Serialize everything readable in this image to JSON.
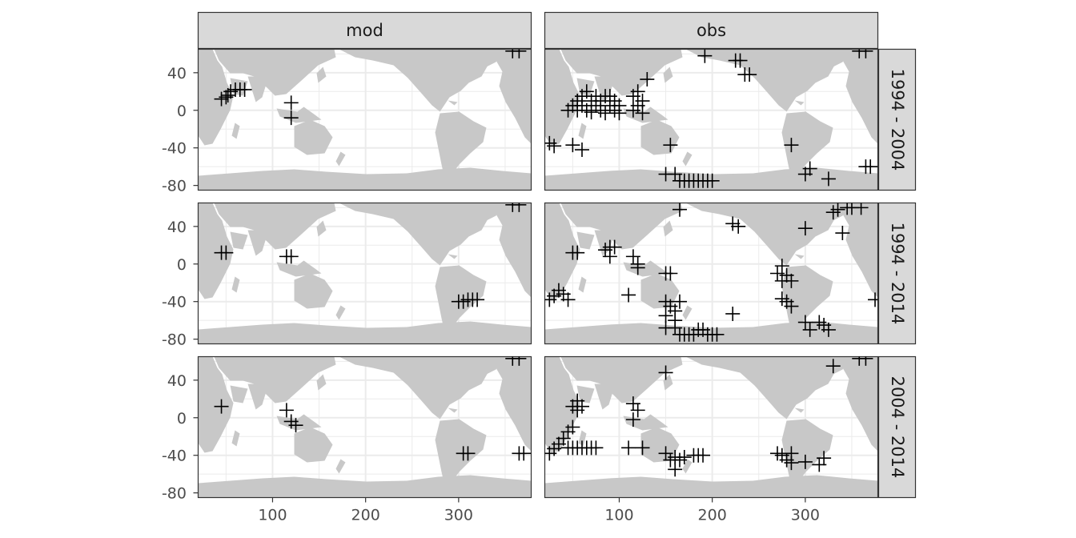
{
  "chart_data": {
    "type": "scatter",
    "facet_columns": [
      "mod",
      "obs"
    ],
    "facet_rows": [
      "1994 - 2004",
      "1994 - 2014",
      "2004 - 2014"
    ],
    "xlim": [
      20,
      378
    ],
    "ylim": [
      -85,
      65
    ],
    "x_ticks": [
      "100",
      "200",
      "300"
    ],
    "x_tick_values": [
      100,
      200,
      300
    ],
    "y_ticks": [
      "40",
      "0",
      "-40",
      "-80"
    ],
    "y_tick_values": [
      40,
      0,
      -40,
      -80
    ],
    "grid": true,
    "marker": "+",
    "colors": {
      "land": "#c8c8c8",
      "grid": "#ebebeb",
      "strip": "#d9d9d9",
      "border": "#333333",
      "marker": "#000000"
    },
    "panels": [
      {
        "col": "mod",
        "row": "1994 - 2004",
        "points": [
          [
            45,
            12
          ],
          [
            50,
            14
          ],
          [
            55,
            20
          ],
          [
            60,
            22
          ],
          [
            65,
            22
          ],
          [
            70,
            22
          ],
          [
            52,
            16
          ],
          [
            120,
            8
          ],
          [
            120,
            -8
          ],
          [
            358,
            63
          ],
          [
            365,
            63
          ]
        ]
      },
      {
        "col": "obs",
        "row": "1994 - 2004",
        "points": [
          [
            25,
            -35
          ],
          [
            30,
            -38
          ],
          [
            45,
            0
          ],
          [
            50,
            5
          ],
          [
            55,
            0
          ],
          [
            55,
            10
          ],
          [
            60,
            15
          ],
          [
            60,
            5
          ],
          [
            65,
            20
          ],
          [
            65,
            0
          ],
          [
            70,
            10
          ],
          [
            70,
            -2
          ],
          [
            75,
            15
          ],
          [
            75,
            5
          ],
          [
            80,
            0
          ],
          [
            80,
            10
          ],
          [
            85,
            15
          ],
          [
            85,
            -3
          ],
          [
            90,
            5
          ],
          [
            90,
            15
          ],
          [
            95,
            0
          ],
          [
            95,
            10
          ],
          [
            100,
            5
          ],
          [
            100,
            -3
          ],
          [
            115,
            0
          ],
          [
            115,
            15
          ],
          [
            120,
            20
          ],
          [
            120,
            5
          ],
          [
            125,
            10
          ],
          [
            125,
            -3
          ],
          [
            130,
            33
          ],
          [
            50,
            -37
          ],
          [
            60,
            -42
          ],
          [
            155,
            -37
          ],
          [
            150,
            -68
          ],
          [
            160,
            -68
          ],
          [
            165,
            -75
          ],
          [
            170,
            -75
          ],
          [
            175,
            -75
          ],
          [
            180,
            -75
          ],
          [
            185,
            -75
          ],
          [
            190,
            -75
          ],
          [
            195,
            -75
          ],
          [
            200,
            -75
          ],
          [
            192,
            58
          ],
          [
            225,
            53
          ],
          [
            230,
            53
          ],
          [
            240,
            38
          ],
          [
            235,
            38
          ],
          [
            285,
            -37
          ],
          [
            300,
            -68
          ],
          [
            305,
            -62
          ],
          [
            325,
            -73
          ],
          [
            365,
            -60
          ],
          [
            370,
            -60
          ],
          [
            358,
            63
          ],
          [
            365,
            63
          ]
        ]
      },
      {
        "col": "mod",
        "row": "1994 - 2014",
        "points": [
          [
            45,
            12
          ],
          [
            50,
            12
          ],
          [
            115,
            8
          ],
          [
            120,
            8
          ],
          [
            300,
            -40
          ],
          [
            305,
            -40
          ],
          [
            310,
            -38
          ],
          [
            315,
            -38
          ],
          [
            320,
            -38
          ],
          [
            358,
            63
          ],
          [
            365,
            63
          ]
        ]
      },
      {
        "col": "obs",
        "row": "1994 - 2014",
        "points": [
          [
            25,
            -38
          ],
          [
            30,
            -34
          ],
          [
            35,
            -28
          ],
          [
            40,
            -32
          ],
          [
            45,
            -38
          ],
          [
            50,
            12
          ],
          [
            55,
            12
          ],
          [
            85,
            15
          ],
          [
            90,
            18
          ],
          [
            95,
            18
          ],
          [
            90,
            8
          ],
          [
            110,
            -33
          ],
          [
            115,
            8
          ],
          [
            120,
            0
          ],
          [
            120,
            -4
          ],
          [
            150,
            -10
          ],
          [
            155,
            -10
          ],
          [
            150,
            -40
          ],
          [
            155,
            -45
          ],
          [
            160,
            -50
          ],
          [
            165,
            -40
          ],
          [
            150,
            -55
          ],
          [
            160,
            -60
          ],
          [
            150,
            -68
          ],
          [
            160,
            -68
          ],
          [
            165,
            -75
          ],
          [
            170,
            -75
          ],
          [
            175,
            -75
          ],
          [
            180,
            -75
          ],
          [
            185,
            -70
          ],
          [
            190,
            -70
          ],
          [
            195,
            -75
          ],
          [
            200,
            -75
          ],
          [
            205,
            -75
          ],
          [
            165,
            58
          ],
          [
            222,
            43
          ],
          [
            228,
            40
          ],
          [
            222,
            -53
          ],
          [
            270,
            -10
          ],
          [
            275,
            -18
          ],
          [
            275,
            -2
          ],
          [
            280,
            -12
          ],
          [
            285,
            -18
          ],
          [
            275,
            -37
          ],
          [
            280,
            -40
          ],
          [
            285,
            -45
          ],
          [
            300,
            38
          ],
          [
            300,
            -62
          ],
          [
            305,
            -70
          ],
          [
            315,
            -62
          ],
          [
            320,
            -65
          ],
          [
            325,
            -70
          ],
          [
            330,
            55
          ],
          [
            335,
            58
          ],
          [
            340,
            33
          ],
          [
            345,
            60
          ],
          [
            350,
            60
          ],
          [
            360,
            60
          ],
          [
            375,
            -38
          ]
        ]
      },
      {
        "col": "mod",
        "row": "2004 - 2014",
        "points": [
          [
            45,
            12
          ],
          [
            115,
            8
          ],
          [
            120,
            -4
          ],
          [
            125,
            -8
          ],
          [
            305,
            -38
          ],
          [
            310,
            -38
          ],
          [
            365,
            -38
          ],
          [
            370,
            -38
          ],
          [
            358,
            63
          ],
          [
            365,
            63
          ]
        ]
      },
      {
        "col": "obs",
        "row": "2004 - 2014",
        "points": [
          [
            25,
            -38
          ],
          [
            30,
            -33
          ],
          [
            35,
            -28
          ],
          [
            40,
            -22
          ],
          [
            45,
            -15
          ],
          [
            50,
            -10
          ],
          [
            45,
            -32
          ],
          [
            50,
            -32
          ],
          [
            55,
            -32
          ],
          [
            60,
            -32
          ],
          [
            65,
            -32
          ],
          [
            70,
            -32
          ],
          [
            75,
            -32
          ],
          [
            50,
            12
          ],
          [
            55,
            18
          ],
          [
            55,
            8
          ],
          [
            60,
            12
          ],
          [
            110,
            -32
          ],
          [
            115,
            15
          ],
          [
            120,
            8
          ],
          [
            115,
            -2
          ],
          [
            125,
            -32
          ],
          [
            150,
            48
          ],
          [
            150,
            -38
          ],
          [
            155,
            -45
          ],
          [
            160,
            -42
          ],
          [
            160,
            -55
          ],
          [
            165,
            -45
          ],
          [
            170,
            -42
          ],
          [
            180,
            -40
          ],
          [
            185,
            -40
          ],
          [
            190,
            -40
          ],
          [
            270,
            -38
          ],
          [
            275,
            -40
          ],
          [
            280,
            -45
          ],
          [
            285,
            -38
          ],
          [
            285,
            -48
          ],
          [
            300,
            -47
          ],
          [
            315,
            -50
          ],
          [
            320,
            -43
          ],
          [
            330,
            55
          ],
          [
            358,
            63
          ],
          [
            365,
            63
          ]
        ]
      }
    ]
  }
}
